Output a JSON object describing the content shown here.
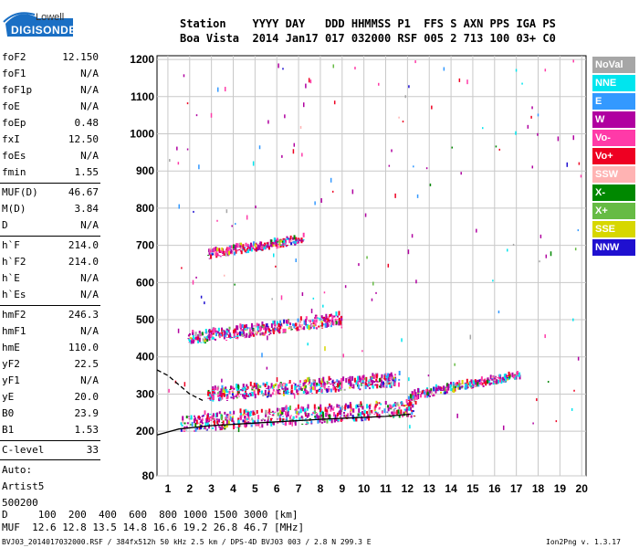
{
  "logo": {
    "line1": "Lowell",
    "line2": "DIGISONDE"
  },
  "header": {
    "row1": "Station    YYYY DAY   DDD HHMMSS P1  FFS S AXN PPS IGA PS",
    "row2": "Boa Vista  2014 Jan17 017 032000 RSF 005 2 713 100 03+ C0"
  },
  "params_group1": [
    {
      "name": "foF2",
      "value": "12.150"
    },
    {
      "name": "foF1",
      "value": "N/A"
    },
    {
      "name": "foF1p",
      "value": "N/A"
    },
    {
      "name": "foE",
      "value": "N/A"
    },
    {
      "name": "foEp",
      "value": "0.48"
    },
    {
      "name": "fxI",
      "value": "12.50"
    },
    {
      "name": "foEs",
      "value": "N/A"
    },
    {
      "name": "fmin",
      "value": "1.55"
    }
  ],
  "params_group2": [
    {
      "name": "MUF(D)",
      "value": "46.67"
    },
    {
      "name": "M(D)",
      "value": "3.84"
    },
    {
      "name": "D",
      "value": "N/A"
    }
  ],
  "params_group3": [
    {
      "name": "h`F",
      "value": "214.0"
    },
    {
      "name": "h`F2",
      "value": "214.0"
    },
    {
      "name": "h`E",
      "value": "N/A"
    },
    {
      "name": "h`Es",
      "value": "N/A"
    }
  ],
  "params_group4": [
    {
      "name": "hmF2",
      "value": "246.3"
    },
    {
      "name": "hmF1",
      "value": "N/A"
    },
    {
      "name": "hmE",
      "value": "110.0"
    },
    {
      "name": "yF2",
      "value": "22.5"
    },
    {
      "name": "yF1",
      "value": "N/A"
    },
    {
      "name": "yE",
      "value": "20.0"
    },
    {
      "name": "B0",
      "value": "23.9"
    },
    {
      "name": "B1",
      "value": "1.53"
    }
  ],
  "clevel": {
    "name": "C-level",
    "value": "33"
  },
  "auto": {
    "line1": "Auto:",
    "line2": "Artist5",
    "line3": "500200"
  },
  "bottom_table": {
    "row1": "D     100  200  400  600  800 1000 1500 3000 [km]",
    "row2": "MUF  12.6 12.8 13.5 14.8 16.6 19.2 26.8 46.7 [MHz]"
  },
  "footer": {
    "left": "BVJ03_2014017032000.RSF / 384fx512h 50 kHz 2.5 km / DPS-4D BVJ03 003 / 2.8 N 299.3 E",
    "right": "Ion2Png v. 1.3.17"
  },
  "legend": [
    {
      "label": "NoVal",
      "color": "#a6a6a6"
    },
    {
      "label": "NNE",
      "color": "#00e5ee"
    },
    {
      "label": "E",
      "color": "#3399ff"
    },
    {
      "label": "W",
      "color": "#b000a0"
    },
    {
      "label": "Vo-",
      "color": "#ff3aa8"
    },
    {
      "label": "Vo+",
      "color": "#ee0022"
    },
    {
      "label": "SSW",
      "color": "#ffb3b3"
    },
    {
      "label": "X-",
      "color": "#008800"
    },
    {
      "label": "X+",
      "color": "#66bb44"
    },
    {
      "label": "SSE",
      "color": "#d7d700"
    },
    {
      "label": "NNW",
      "color": "#1f10d0"
    }
  ],
  "chart_data": {
    "type": "scatter",
    "xlim": [
      0.5,
      20.2
    ],
    "ylim": [
      80,
      1210
    ],
    "x_ticks": [
      1,
      2,
      3,
      4,
      5,
      6,
      7,
      8,
      9,
      10,
      11,
      12,
      13,
      14,
      15,
      16,
      17,
      18,
      19,
      20
    ],
    "y_ticks": [
      80,
      200,
      300,
      400,
      500,
      600,
      700,
      800,
      900,
      1000,
      1100,
      1200
    ],
    "grid": true,
    "profile_line": [
      [
        0.5,
        190
      ],
      [
        1.5,
        206
      ],
      [
        3,
        215
      ],
      [
        5,
        222
      ],
      [
        8,
        232
      ],
      [
        11,
        240
      ],
      [
        12.15,
        246
      ]
    ],
    "dashed_line": [
      [
        0.5,
        365
      ],
      [
        1,
        350
      ],
      [
        1.5,
        325
      ],
      [
        2,
        300
      ],
      [
        2.6,
        283
      ]
    ],
    "traces": [
      {
        "name": "F-layer 1st hop",
        "x0": 1.55,
        "x1": 12.4,
        "y0": 218,
        "y1": 258,
        "spread": 45
      },
      {
        "name": "F-layer 1st hop upper",
        "x0": 2.8,
        "x1": 11.6,
        "y0": 295,
        "y1": 335,
        "spread": 35
      },
      {
        "name": "F-layer extended",
        "x0": 12.0,
        "x1": 17.2,
        "y0": 290,
        "y1": 348,
        "spread": 20
      },
      {
        "name": "2nd hop",
        "x0": 1.9,
        "x1": 9.0,
        "y0": 445,
        "y1": 498,
        "spread": 30
      },
      {
        "name": "3rd hop",
        "x0": 2.8,
        "x1": 7.2,
        "y0": 672,
        "y1": 712,
        "spread": 20
      }
    ]
  }
}
